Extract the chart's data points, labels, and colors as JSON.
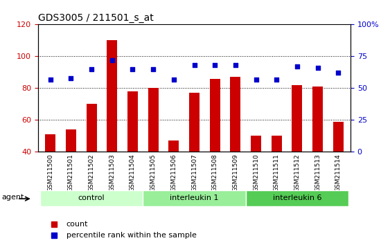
{
  "title": "GDS3005 / 211501_s_at",
  "samples": [
    "GSM211500",
    "GSM211501",
    "GSM211502",
    "GSM211503",
    "GSM211504",
    "GSM211505",
    "GSM211506",
    "GSM211507",
    "GSM211508",
    "GSM211509",
    "GSM211510",
    "GSM211511",
    "GSM211512",
    "GSM211513",
    "GSM211514"
  ],
  "counts": [
    51,
    54,
    70,
    110,
    78,
    80,
    47,
    77,
    86,
    87,
    50,
    50,
    82,
    81,
    59
  ],
  "percentile": [
    57,
    58,
    65,
    72,
    65,
    65,
    57,
    68,
    68,
    68,
    57,
    57,
    67,
    66,
    62
  ],
  "bar_color": "#cc0000",
  "dot_color": "#0000cc",
  "ylim_left": [
    40,
    120
  ],
  "ylim_right": [
    0,
    100
  ],
  "yticks_left": [
    40,
    60,
    80,
    100,
    120
  ],
  "yticks_right": [
    0,
    25,
    50,
    75,
    100
  ],
  "yticklabels_right": [
    "0",
    "25",
    "50",
    "75",
    "100%"
  ],
  "groups": [
    {
      "label": "control",
      "start": 0,
      "end": 4,
      "color": "#ccffcc"
    },
    {
      "label": "interleukin 1",
      "start": 5,
      "end": 9,
      "color": "#99ee99"
    },
    {
      "label": "interleukin 6",
      "start": 10,
      "end": 14,
      "color": "#55cc55"
    }
  ],
  "agent_label": "agent",
  "legend_items": [
    {
      "label": "count",
      "color": "#cc0000",
      "marker": "s"
    },
    {
      "label": "percentile rank within the sample",
      "color": "#0000cc",
      "marker": "s"
    }
  ],
  "background_color": "#e8e8e8",
  "plot_bg": "#ffffff",
  "grid_color": "#000000",
  "tick_label_color_left": "#cc0000",
  "tick_label_color_right": "#0000cc"
}
